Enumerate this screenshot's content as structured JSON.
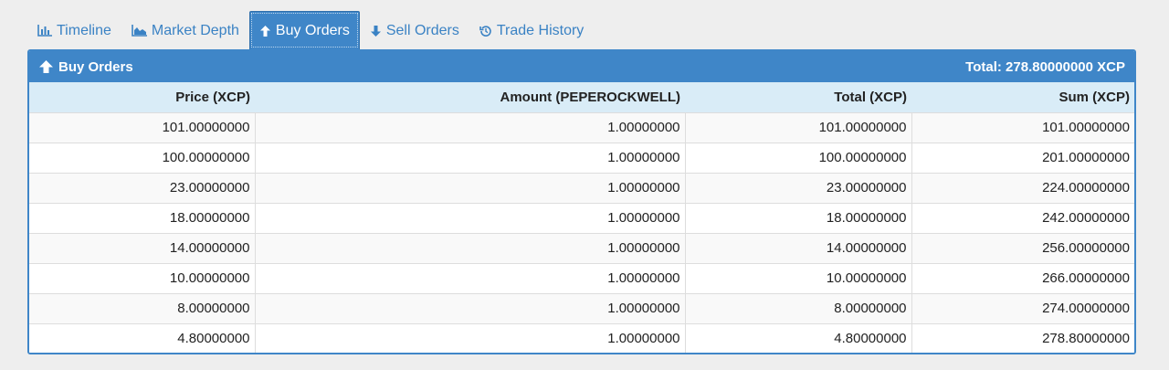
{
  "tabs": [
    {
      "label": "Timeline",
      "icon": "bar-chart-icon"
    },
    {
      "label": "Market Depth",
      "icon": "area-chart-icon"
    },
    {
      "label": "Buy Orders",
      "icon": "arrow-up-icon"
    },
    {
      "label": "Sell Orders",
      "icon": "arrow-down-icon"
    },
    {
      "label": "Trade History",
      "icon": "history-icon"
    }
  ],
  "active_tab": "Buy Orders",
  "panel": {
    "title": "Buy Orders",
    "total": "Total: 278.80000000 XCP"
  },
  "table": {
    "headers": [
      "Price (XCP)",
      "Amount (PEPEROCKWELL)",
      "Total (XCP)",
      "Sum (XCP)"
    ],
    "rows": [
      [
        "101.00000000",
        "1.00000000",
        "101.00000000",
        "101.00000000"
      ],
      [
        "100.00000000",
        "1.00000000",
        "100.00000000",
        "201.00000000"
      ],
      [
        "23.00000000",
        "1.00000000",
        "23.00000000",
        "224.00000000"
      ],
      [
        "18.00000000",
        "1.00000000",
        "18.00000000",
        "242.00000000"
      ],
      [
        "14.00000000",
        "1.00000000",
        "14.00000000",
        "256.00000000"
      ],
      [
        "10.00000000",
        "1.00000000",
        "10.00000000",
        "266.00000000"
      ],
      [
        "8.00000000",
        "1.00000000",
        "8.00000000",
        "274.00000000"
      ],
      [
        "4.80000000",
        "1.00000000",
        "4.80000000",
        "278.80000000"
      ]
    ]
  },
  "colors": {
    "accent": "#3f86c8",
    "link": "#3a82c4",
    "header_row": "#d9ecf7",
    "background": "#eeeeee"
  }
}
